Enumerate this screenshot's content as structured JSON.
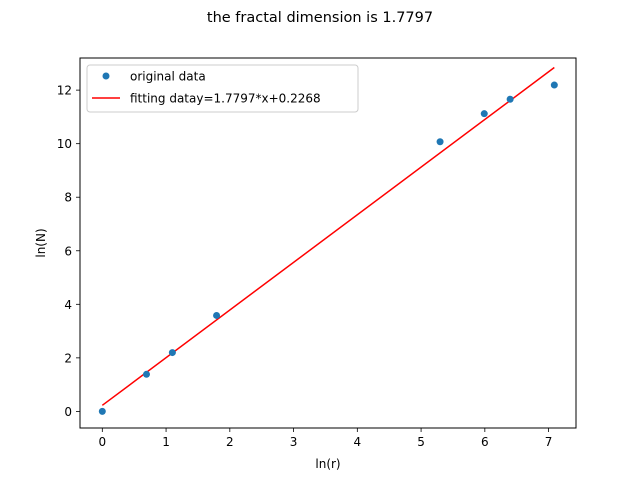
{
  "chart_data": {
    "type": "scatter",
    "title": "the fractal dimension is 1.7797",
    "xlabel": "ln(r)",
    "ylabel": "ln(N)",
    "xlim": [
      -0.35,
      7.43
    ],
    "ylim": [
      -0.62,
      13.2
    ],
    "xticks": [
      0,
      1,
      2,
      3,
      4,
      5,
      6,
      7
    ],
    "yticks": [
      0,
      2,
      4,
      6,
      8,
      10,
      12
    ],
    "grid": false,
    "legend_position": "top-left",
    "series": [
      {
        "name": "original data",
        "kind": "scatter",
        "color": "#1f77b4",
        "x": [
          0.0,
          0.693,
          1.099,
          1.792,
          5.298,
          5.991,
          6.397,
          7.09
        ],
        "y": [
          0.0,
          1.386,
          2.197,
          3.584,
          10.071,
          11.12,
          11.66,
          12.19
        ]
      },
      {
        "name": "fitting datay=1.7797*x+0.2268",
        "kind": "line",
        "color": "#ff0000",
        "slope": 1.7797,
        "intercept": 0.2268,
        "x": [
          0.0,
          7.09
        ]
      }
    ]
  }
}
